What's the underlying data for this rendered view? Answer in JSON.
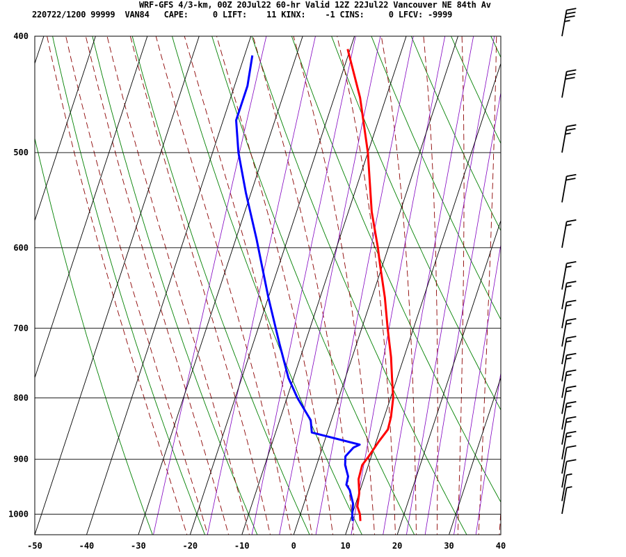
{
  "header": {
    "line1": "WRF-GFS 4/3-km, 00Z 20Jul22 60-hr Valid 12Z 22Jul22 Vancouver NE 84th Av",
    "line2": "220722/1200 99999  VAN84   CAPE:     0 LIFT:    11 KINX:    -1 CINS:     0 LFCV: -9999"
  },
  "colors": {
    "temperature": "#ff0000",
    "dewpoint": "#0000ff",
    "isotherm_grid": "#000000",
    "dry_adiabat": "#008000",
    "moist_adiabat": "#8b0000",
    "mixing_ratio": "#8000c0",
    "wind_barb": "#000000"
  },
  "chart_data": {
    "type": "skew-t",
    "x_axis": {
      "label": "",
      "range": [
        -50,
        40
      ],
      "ticks": [
        -50,
        -40,
        -30,
        -20,
        -10,
        0,
        10,
        20,
        30,
        40
      ]
    },
    "y_axis": {
      "label": "",
      "scale": "log-pressure",
      "range": [
        1040,
        400
      ],
      "ticks": [
        400,
        500,
        600,
        700,
        800,
        900,
        1000
      ]
    },
    "series": [
      {
        "role": "temperature",
        "points": [
          {
            "p": 1013,
            "t": 12.0
          },
          {
            "p": 1000,
            "t": 11.5
          },
          {
            "p": 985,
            "t": 10.5
          },
          {
            "p": 960,
            "t": 10.0
          },
          {
            "p": 935,
            "t": 9.0
          },
          {
            "p": 910,
            "t": 8.8
          },
          {
            "p": 895,
            "t": 9.5
          },
          {
            "p": 870,
            "t": 10.5
          },
          {
            "p": 850,
            "t": 11.5
          },
          {
            "p": 830,
            "t": 11.3
          },
          {
            "p": 800,
            "t": 10.5
          },
          {
            "p": 770,
            "t": 9.0
          },
          {
            "p": 740,
            "t": 7.5
          },
          {
            "p": 700,
            "t": 5.0
          },
          {
            "p": 660,
            "t": 2.5
          },
          {
            "p": 620,
            "t": -0.5
          },
          {
            "p": 600,
            "t": -2.0
          },
          {
            "p": 560,
            "t": -5.5
          },
          {
            "p": 500,
            "t": -10.0
          },
          {
            "p": 450,
            "t": -15.0
          },
          {
            "p": 410,
            "t": -20.5
          }
        ]
      },
      {
        "role": "dewpoint",
        "points": [
          {
            "p": 1013,
            "t": 10.5
          },
          {
            "p": 1000,
            "t": 10.0
          },
          {
            "p": 980,
            "t": 9.5
          },
          {
            "p": 955,
            "t": 8.0
          },
          {
            "p": 945,
            "t": 7.0
          },
          {
            "p": 930,
            "t": 6.8
          },
          {
            "p": 910,
            "t": 5.5
          },
          {
            "p": 895,
            "t": 5.0
          },
          {
            "p": 880,
            "t": 6.0
          },
          {
            "p": 875,
            "t": 7.0
          },
          {
            "p": 855,
            "t": -3.0
          },
          {
            "p": 835,
            "t": -4.0
          },
          {
            "p": 800,
            "t": -8.0
          },
          {
            "p": 770,
            "t": -11.0
          },
          {
            "p": 720,
            "t": -15.0
          },
          {
            "p": 660,
            "t": -20.0
          },
          {
            "p": 590,
            "t": -26.0
          },
          {
            "p": 540,
            "t": -31.0
          },
          {
            "p": 500,
            "t": -35.0
          },
          {
            "p": 470,
            "t": -37.5
          },
          {
            "p": 440,
            "t": -37.5
          },
          {
            "p": 415,
            "t": -38.5
          }
        ]
      }
    ],
    "wind_barbs": [
      {
        "p": 1000,
        "speed_kt": 5
      },
      {
        "p": 975,
        "speed_kt": 5
      },
      {
        "p": 950,
        "speed_kt": 10
      },
      {
        "p": 925,
        "speed_kt": 10
      },
      {
        "p": 900,
        "speed_kt": 15
      },
      {
        "p": 875,
        "speed_kt": 15
      },
      {
        "p": 850,
        "speed_kt": 15
      },
      {
        "p": 825,
        "speed_kt": 15
      },
      {
        "p": 800,
        "speed_kt": 15
      },
      {
        "p": 775,
        "speed_kt": 15
      },
      {
        "p": 750,
        "speed_kt": 15
      },
      {
        "p": 725,
        "speed_kt": 15
      },
      {
        "p": 700,
        "speed_kt": 15
      },
      {
        "p": 675,
        "speed_kt": 15
      },
      {
        "p": 650,
        "speed_kt": 15
      },
      {
        "p": 600,
        "speed_kt": 15
      },
      {
        "p": 550,
        "speed_kt": 20
      },
      {
        "p": 500,
        "speed_kt": 25
      },
      {
        "p": 450,
        "speed_kt": 30
      },
      {
        "p": 400,
        "speed_kt": 35
      }
    ],
    "grid": true
  }
}
